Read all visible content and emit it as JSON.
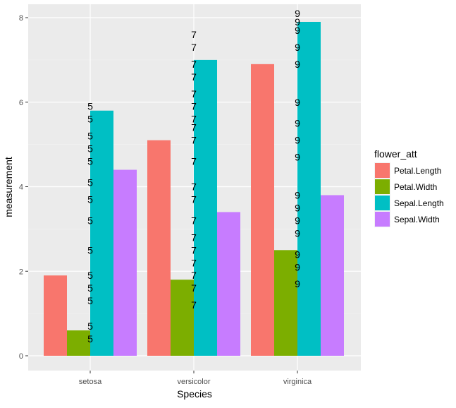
{
  "chart_data": {
    "type": "bar",
    "categories": [
      "setosa",
      "versicolor",
      "virginica"
    ],
    "series": [
      {
        "name": "Petal.Length",
        "color": "#F8766D",
        "values": [
          1.9,
          5.1,
          6.9
        ]
      },
      {
        "name": "Petal.Width",
        "color": "#7CAE00",
        "values": [
          0.6,
          1.8,
          2.5
        ]
      },
      {
        "name": "Sepal.Length",
        "color": "#00BFC4",
        "values": [
          5.8,
          7.0,
          7.9
        ]
      },
      {
        "name": "Sepal.Width",
        "color": "#C77CFF",
        "values": [
          4.4,
          3.4,
          3.8
        ]
      }
    ],
    "xlabel": "Species",
    "ylabel": "measurement",
    "ylim": [
      -0.4,
      8.3
    ],
    "yticks": [
      0,
      2,
      4,
      6,
      8
    ],
    "grid": true,
    "legend": {
      "title": "flower_att",
      "position": "right"
    },
    "text_labels": [
      {
        "category": "setosa",
        "label": "5",
        "y": [
          0.4,
          0.7,
          1.3,
          1.6,
          1.9,
          2.5,
          3.2,
          3.7,
          4.1,
          4.6,
          4.9,
          5.2,
          5.6,
          5.9
        ]
      },
      {
        "category": "versicolor",
        "label": "7",
        "y": [
          1.2,
          1.6,
          1.9,
          2.2,
          2.5,
          2.8,
          3.2,
          3.7,
          4.0,
          4.6,
          5.1,
          5.4,
          5.6,
          5.9,
          6.2,
          6.6,
          6.9,
          7.3,
          7.6
        ]
      },
      {
        "category": "virginica",
        "label": "9",
        "y": [
          1.7,
          2.1,
          2.4,
          2.9,
          3.2,
          3.5,
          3.8,
          4.7,
          5.1,
          5.5,
          6.0,
          6.9,
          7.3,
          7.7,
          7.9,
          8.1
        ]
      }
    ]
  }
}
